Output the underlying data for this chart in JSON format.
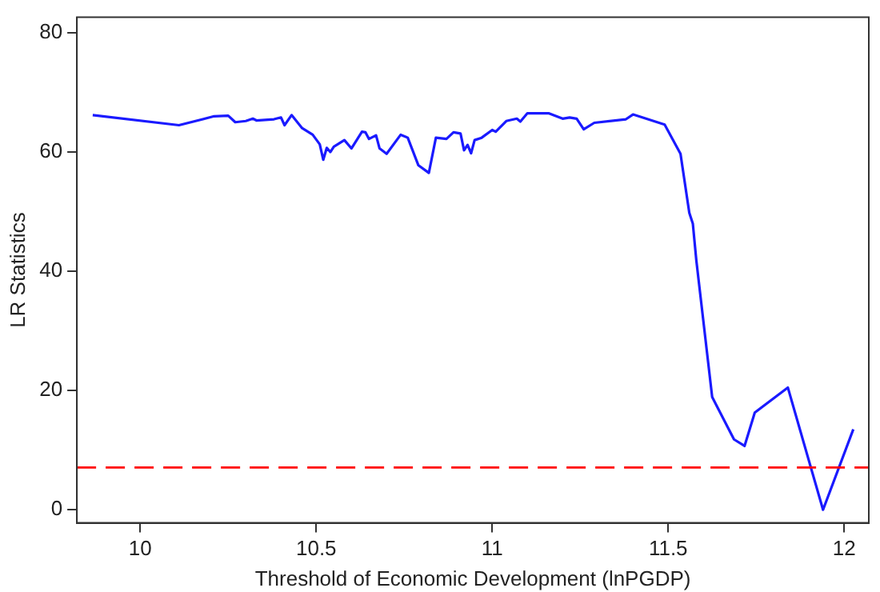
{
  "chart_data": {
    "type": "line",
    "xlabel": "Threshold of Economic Development (lnPGDP)",
    "ylabel": "LR Statistics",
    "xlim": [
      9.82,
      12.07
    ],
    "xticks": [
      10,
      10.5,
      11,
      11.5,
      12
    ],
    "ylim": [
      -2.2,
      82.6
    ],
    "yticks": [
      0,
      20,
      40,
      60,
      80
    ],
    "grid": false,
    "legend": false,
    "marker": "none",
    "line_style": "solid",
    "x": [
      9.865,
      10.11,
      10.21,
      10.25,
      10.27,
      10.3,
      10.32,
      10.33,
      10.38,
      10.4,
      10.41,
      10.43,
      10.46,
      10.49,
      10.51,
      10.52,
      10.53,
      10.54,
      10.55,
      10.58,
      10.6,
      10.63,
      10.64,
      10.65,
      10.67,
      10.68,
      10.7,
      10.74,
      10.76,
      10.79,
      10.82,
      10.84,
      10.87,
      10.89,
      10.91,
      10.92,
      10.93,
      10.94,
      10.95,
      10.97,
      11.0,
      11.01,
      11.04,
      11.07,
      11.08,
      11.1,
      11.16,
      11.2,
      11.22,
      11.24,
      11.26,
      11.29,
      11.38,
      11.4,
      11.49,
      11.535,
      11.56,
      11.57,
      11.58,
      11.625,
      11.687,
      11.717,
      11.746,
      11.84,
      11.94,
      12.026
    ],
    "series": [
      {
        "color": "#1a1aff",
        "values": [
          66.2,
          64.5,
          66.0,
          66.1,
          65.0,
          65.2,
          65.6,
          65.3,
          65.5,
          65.8,
          64.5,
          66.2,
          64.0,
          62.9,
          61.3,
          58.7,
          60.7,
          60.0,
          60.9,
          62.0,
          60.6,
          63.4,
          63.3,
          62.2,
          62.8,
          60.6,
          59.7,
          62.9,
          62.4,
          57.8,
          56.5,
          62.4,
          62.2,
          63.3,
          63.1,
          60.3,
          61.2,
          59.8,
          62.0,
          62.4,
          63.7,
          63.4,
          65.2,
          65.6,
          65.1,
          66.5,
          66.5,
          65.6,
          65.8,
          65.6,
          63.8,
          64.9,
          65.5,
          66.3,
          64.6,
          59.7,
          49.8,
          48.0,
          41.8,
          18.9,
          11.8,
          10.7,
          16.3,
          20.5,
          0.0,
          13.5
        ]
      }
    ],
    "ref_lines": [
      {
        "axis": "y",
        "value": 7.1,
        "color": "#ff0000",
        "line_style": "dashed"
      }
    ]
  }
}
